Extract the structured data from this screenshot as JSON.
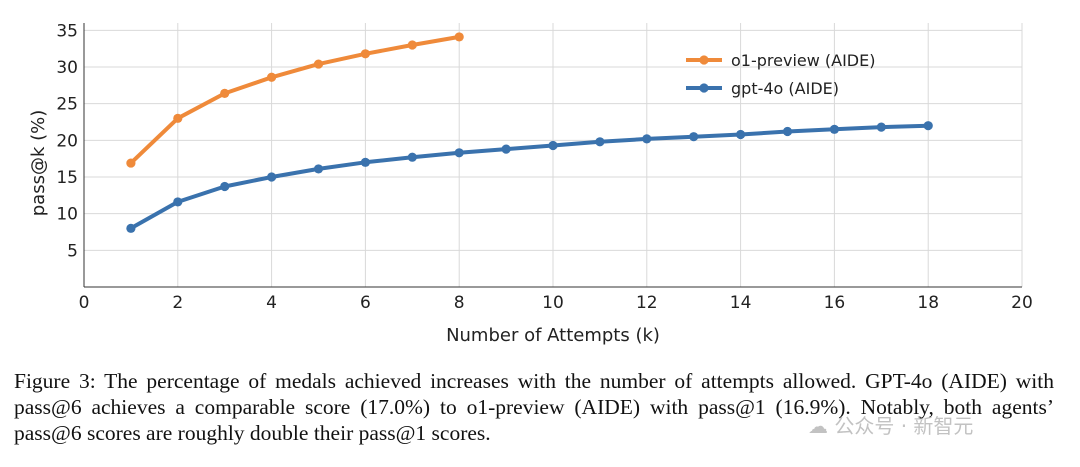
{
  "chart_data": {
    "type": "line",
    "title": "",
    "xlabel": "Number of Attempts (k)",
    "ylabel": "pass@k (%)",
    "xlim": [
      0,
      20
    ],
    "ylim": [
      0,
      36
    ],
    "xticks": [
      0,
      2,
      4,
      6,
      8,
      10,
      12,
      14,
      16,
      18,
      20
    ],
    "yticks": [
      5,
      10,
      15,
      20,
      25,
      30,
      35
    ],
    "grid": true,
    "legend_position": "top-right",
    "series": [
      {
        "name": "o1-preview (AIDE)",
        "color": "#ef8a3a",
        "x": [
          1,
          2,
          3,
          4,
          5,
          6,
          7,
          8
        ],
        "y": [
          16.9,
          23.0,
          26.4,
          28.6,
          30.4,
          31.8,
          33.0,
          34.1
        ]
      },
      {
        "name": "gpt-4o (AIDE)",
        "color": "#3a72ad",
        "x": [
          1,
          2,
          3,
          4,
          5,
          6,
          7,
          8,
          9,
          10,
          11,
          12,
          13,
          14,
          15,
          16,
          17,
          18
        ],
        "y": [
          8.0,
          11.6,
          13.7,
          15.0,
          16.1,
          17.0,
          17.7,
          18.3,
          18.8,
          19.3,
          19.8,
          20.2,
          20.5,
          20.8,
          21.2,
          21.5,
          21.8,
          22.0
        ]
      }
    ]
  },
  "caption": {
    "text": "Figure 3: The percentage of medals achieved increases with the number of attempts allowed. GPT-4o (AIDE) with pass@6 achieves a comparable score (17.0%) to o1-preview (AIDE) with pass@1 (16.9%). Notably, both agents’ pass@6 scores are roughly double their pass@1 scores."
  },
  "watermark": {
    "text": "公众号 · 新智元",
    "icon": "wechat-icon"
  }
}
